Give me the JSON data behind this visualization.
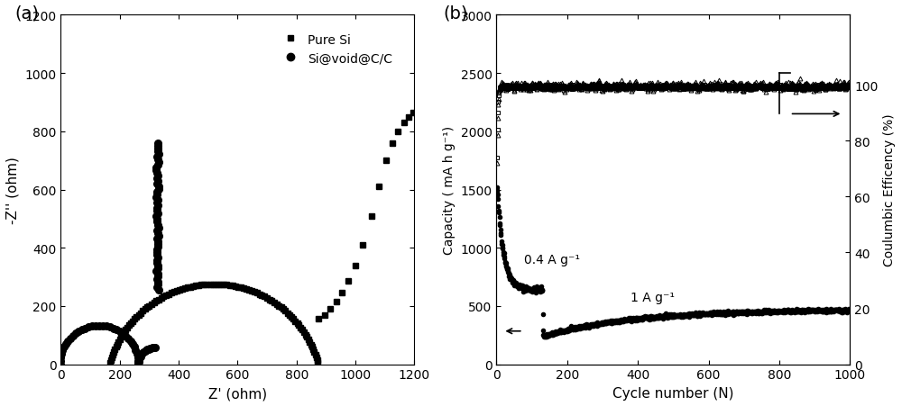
{
  "panel_a": {
    "title": "(a)",
    "xlabel": "Z' (ohm)",
    "ylabel": "-Z'' (ohm)",
    "xlim": [
      0,
      1200
    ],
    "ylim": [
      0,
      1200
    ],
    "xticks": [
      0,
      200,
      400,
      600,
      800,
      1000,
      1200
    ],
    "yticks": [
      0,
      200,
      400,
      600,
      800,
      1000,
      1200
    ],
    "legend_labels": [
      "Pure Si",
      "Si@void@C/C"
    ]
  },
  "panel_b": {
    "title": "(b)",
    "xlabel": "Cycle number (N)",
    "ylabel": "Capacity ( mA h g⁻¹)",
    "ylabel2": "Coulumbic Efficency (%)",
    "xlim": [
      0,
      1000
    ],
    "ylim": [
      0,
      3000
    ],
    "ylim2": [
      0,
      125
    ],
    "xticks": [
      0,
      200,
      400,
      600,
      800,
      1000
    ],
    "yticks": [
      0,
      500,
      1000,
      1500,
      2000,
      2500,
      3000
    ],
    "yticks2": [
      0,
      20,
      40,
      60,
      80,
      100
    ],
    "annotation1": "0.4 A g⁻¹",
    "annotation2": "1 A g⁻¹"
  },
  "colors": {
    "black": "#000000",
    "background": "#ffffff"
  }
}
